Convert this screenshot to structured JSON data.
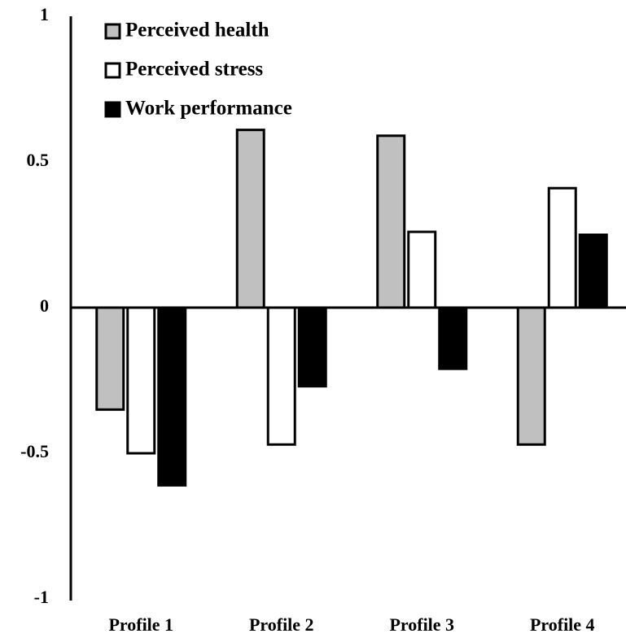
{
  "chart_data": {
    "type": "bar",
    "categories": [
      "Profile 1",
      "Profile 2",
      "Profile 3",
      "Profile 4"
    ],
    "series": [
      {
        "name": "Perceived health",
        "color": "#c0c0c0",
        "values": [
          -0.35,
          0.61,
          0.59,
          -0.47
        ]
      },
      {
        "name": "Perceived stress",
        "color": "#ffffff",
        "values": [
          -0.5,
          -0.47,
          0.26,
          0.41
        ]
      },
      {
        "name": "Work performance",
        "color": "#000000",
        "values": [
          -0.61,
          -0.27,
          -0.21,
          0.25
        ]
      }
    ],
    "ylim": [
      -1,
      1
    ],
    "yticks": [
      -1,
      -0.5,
      0,
      0.5,
      1
    ],
    "grid": false,
    "legend": "top-left"
  }
}
